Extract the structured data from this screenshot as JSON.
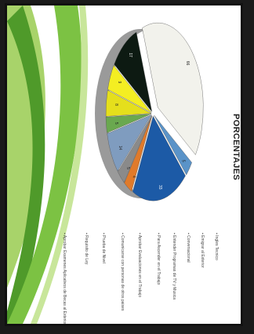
{
  "slide": {
    "title": "PORCENTAJES",
    "footer": "",
    "colors": {
      "background": "#ffffff",
      "frame": "#111111",
      "swoosh_dark": "#4f9a2a",
      "swoosh_light": "#a8d36a"
    }
  },
  "chart_data": {
    "type": "pie",
    "title": "PORCENTAJES",
    "style": "3d-exploded",
    "slices": [
      {
        "label": "66",
        "value": 40,
        "color": "#f2f2ec"
      },
      {
        "label": "5",
        "value": 3,
        "color": "#5a93c8"
      },
      {
        "label": "33",
        "value": 20,
        "color": "#1c5aa6"
      },
      {
        "label": "4",
        "value": 3,
        "color": "#e07a2a"
      },
      {
        "label": "5",
        "value": 3,
        "color": "#8a8a8a"
      },
      {
        "label": "14",
        "value": 8,
        "color": "#7f9cbf"
      },
      {
        "label": "5",
        "value": 3,
        "color": "#6aa84f"
      },
      {
        "label": "8",
        "value": 5,
        "color": "#e5df1c"
      },
      {
        "label": "9",
        "value": 5,
        "color": "#f4ee22"
      },
      {
        "label": "17",
        "value": 10,
        "color": "#0d1a12"
      }
    ],
    "legend": [
      "Ingles Tecnico",
      "Emigrar al Exterior",
      "Conversacional",
      "Entender Programas de TV y Musica",
      "Para Ascender en el Trabajo",
      "Aprobar Evaluaciones en el Trabajo",
      "Comunicarse con personas de otros paises",
      "Prueba de Nivel",
      "Requisito de Ley",
      "Aprobar Examenes Aplicativos de Becas al Exterior"
    ]
  }
}
